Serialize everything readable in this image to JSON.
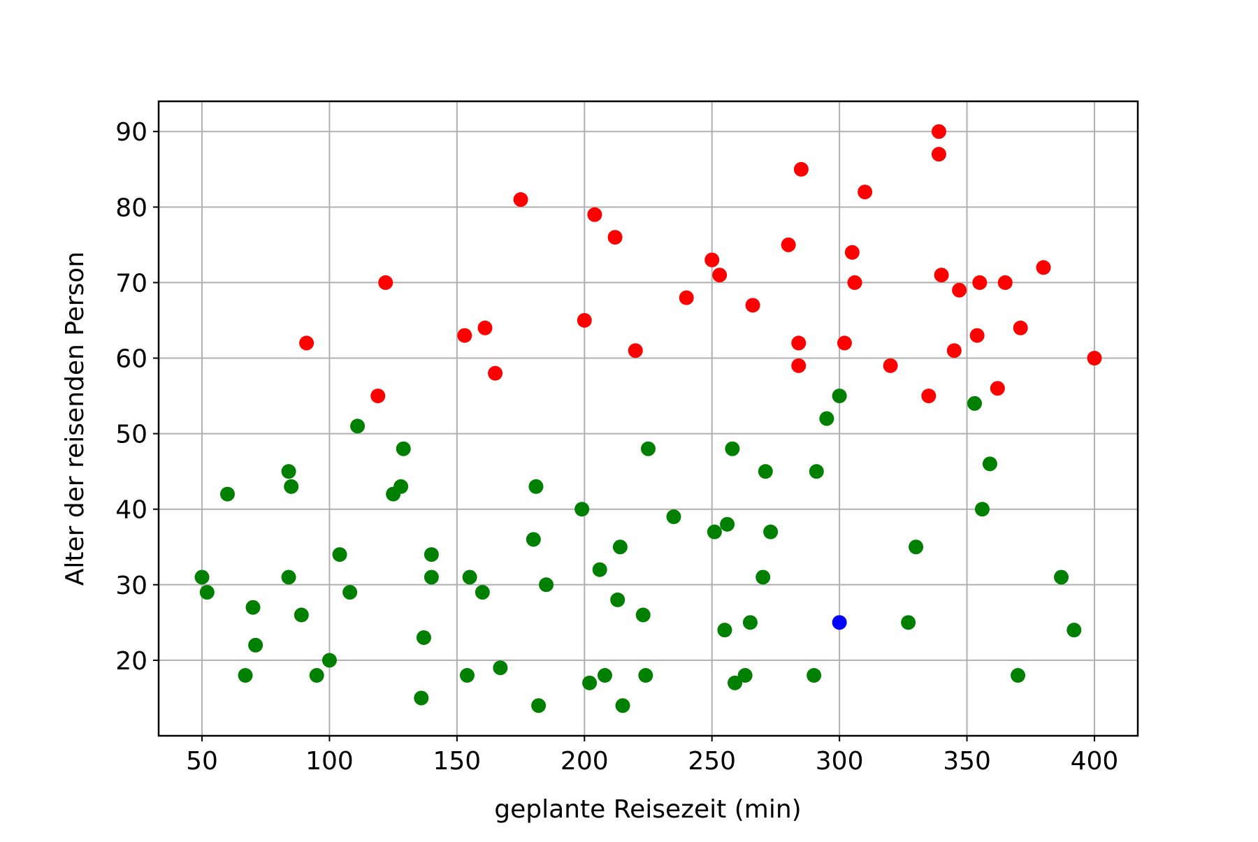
{
  "chart_data": {
    "type": "scatter",
    "title": "",
    "xlabel": "geplante Reisezeit (min)",
    "ylabel": "Alter der reisenden Person",
    "xlim": [
      33,
      417
    ],
    "ylim": [
      10,
      94
    ],
    "xticks": [
      50,
      100,
      150,
      200,
      250,
      300,
      350,
      400
    ],
    "yticks": [
      20,
      30,
      40,
      50,
      60,
      70,
      80,
      90
    ],
    "grid": true,
    "legend": "none",
    "colors": {
      "red": "#ff0000",
      "green": "#008000",
      "blue": "#0000ff"
    },
    "series": [
      {
        "color": "#ff0000",
        "points": [
          [
            91,
            62
          ],
          [
            119,
            55
          ],
          [
            122,
            70
          ],
          [
            153,
            63
          ],
          [
            161,
            64
          ],
          [
            165,
            58
          ],
          [
            175,
            81
          ],
          [
            200,
            65
          ],
          [
            204,
            79
          ],
          [
            212,
            76
          ],
          [
            220,
            61
          ],
          [
            240,
            68
          ],
          [
            250,
            73
          ],
          [
            253,
            71
          ],
          [
            266,
            67
          ],
          [
            280,
            75
          ],
          [
            284,
            62
          ],
          [
            284,
            59
          ],
          [
            285,
            85
          ],
          [
            302,
            62
          ],
          [
            305,
            74
          ],
          [
            306,
            70
          ],
          [
            310,
            82
          ],
          [
            320,
            59
          ],
          [
            335,
            55
          ],
          [
            339,
            90
          ],
          [
            339,
            87
          ],
          [
            340,
            71
          ],
          [
            345,
            61
          ],
          [
            347,
            69
          ],
          [
            354,
            63
          ],
          [
            355,
            70
          ],
          [
            362,
            56
          ],
          [
            365,
            70
          ],
          [
            371,
            64
          ],
          [
            380,
            72
          ],
          [
            400,
            60
          ]
        ]
      },
      {
        "color": "#008000",
        "points": [
          [
            50,
            31
          ],
          [
            52,
            29
          ],
          [
            60,
            42
          ],
          [
            67,
            18
          ],
          [
            70,
            27
          ],
          [
            71,
            22
          ],
          [
            84,
            45
          ],
          [
            84,
            31
          ],
          [
            85,
            43
          ],
          [
            89,
            26
          ],
          [
            95,
            18
          ],
          [
            100,
            20
          ],
          [
            104,
            34
          ],
          [
            108,
            29
          ],
          [
            111,
            51
          ],
          [
            125,
            42
          ],
          [
            128,
            43
          ],
          [
            129,
            48
          ],
          [
            136,
            15
          ],
          [
            137,
            23
          ],
          [
            140,
            34
          ],
          [
            140,
            31
          ],
          [
            154,
            18
          ],
          [
            155,
            31
          ],
          [
            160,
            29
          ],
          [
            167,
            19
          ],
          [
            180,
            36
          ],
          [
            181,
            43
          ],
          [
            182,
            14
          ],
          [
            185,
            30
          ],
          [
            199,
            40
          ],
          [
            202,
            17
          ],
          [
            206,
            32
          ],
          [
            208,
            18
          ],
          [
            213,
            28
          ],
          [
            214,
            35
          ],
          [
            215,
            14
          ],
          [
            223,
            26
          ],
          [
            224,
            18
          ],
          [
            225,
            48
          ],
          [
            235,
            39
          ],
          [
            251,
            37
          ],
          [
            255,
            24
          ],
          [
            256,
            38
          ],
          [
            258,
            48
          ],
          [
            259,
            17
          ],
          [
            263,
            18
          ],
          [
            265,
            25
          ],
          [
            270,
            31
          ],
          [
            271,
            45
          ],
          [
            273,
            37
          ],
          [
            290,
            18
          ],
          [
            291,
            45
          ],
          [
            295,
            52
          ],
          [
            300,
            55
          ],
          [
            327,
            25
          ],
          [
            330,
            35
          ],
          [
            353,
            54
          ],
          [
            356,
            40
          ],
          [
            359,
            46
          ],
          [
            370,
            18
          ],
          [
            387,
            31
          ],
          [
            392,
            24
          ]
        ]
      },
      {
        "color": "#0000ff",
        "points": [
          [
            300,
            25
          ]
        ]
      }
    ]
  }
}
